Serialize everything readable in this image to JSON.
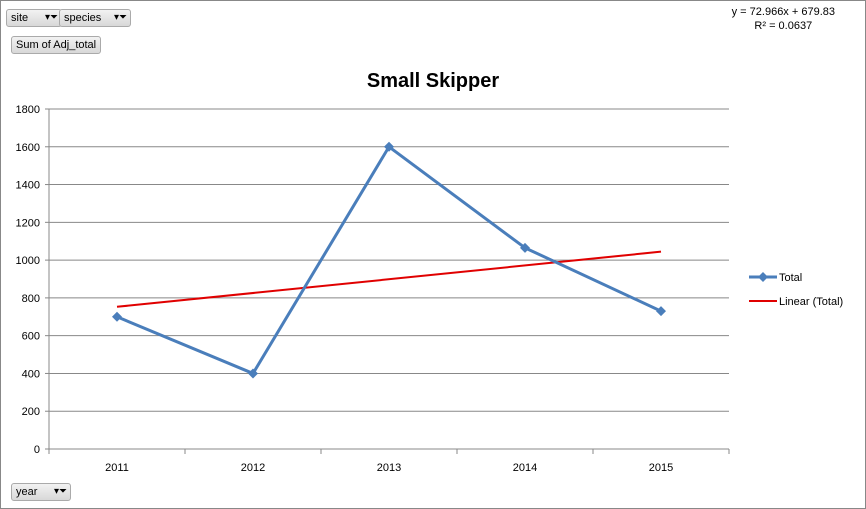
{
  "field_buttons": {
    "site": "site",
    "species": "species",
    "values": "Sum of Adj_total",
    "axis": "year"
  },
  "trendline": {
    "equation": "y = 72.966x + 679.83",
    "r2": "R² = 0.0637",
    "slope": 72.966,
    "intercept": 679.83
  },
  "chart_data": {
    "type": "line",
    "title": "Small Skipper",
    "xlabel": "",
    "ylabel": "",
    "categories": [
      "2011",
      "2012",
      "2013",
      "2014",
      "2015"
    ],
    "series": [
      {
        "name": "Total",
        "values": [
          700,
          400,
          1600,
          1065,
          730
        ],
        "color": "#4a7ebb",
        "marker": "diamond"
      },
      {
        "name": "Linear (Total)",
        "values": [
          752.8,
          825.8,
          898.7,
          971.7,
          1044.7
        ],
        "color": "#e00000",
        "type": "trendline"
      }
    ],
    "ylim": [
      0,
      1800
    ],
    "yticks": [
      "0",
      "200",
      "400",
      "600",
      "800",
      "1000",
      "1200",
      "1400",
      "1600",
      "1800"
    ],
    "grid": true,
    "legend": "right"
  }
}
